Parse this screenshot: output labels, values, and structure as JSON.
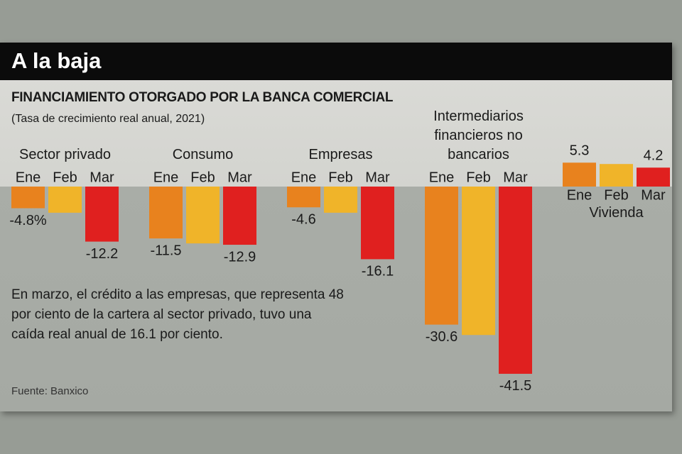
{
  "header": {
    "title": "A la baja",
    "subtitle": "FINANCIAMIENTO OTORGADO POR LA BANCA COMERCIAL",
    "unit_note": "(Tasa de crecimiento real anual, 2021)"
  },
  "note": "En marzo, el crédito a las empresas, que representa 48 por ciento de la cartera al sector privado, tuvo una caída real anual de 16.1 por ciento.",
  "source": "Fuente: Banxico",
  "chart_data": [
    {
      "type": "bar",
      "title": "Sector privado",
      "categories": [
        "Ene",
        "Feb",
        "Mar"
      ],
      "values": [
        -4.8,
        -5.8,
        -12.2
      ],
      "value_labels": [
        "-4.8%",
        null,
        "-12.2"
      ],
      "colors": [
        "#e8821e",
        "#f0b429",
        "#e0201f"
      ],
      "ylim": [
        -45,
        10
      ]
    },
    {
      "type": "bar",
      "title": "Consumo",
      "categories": [
        "Ene",
        "Feb",
        "Mar"
      ],
      "values": [
        -11.5,
        -12.6,
        -12.9
      ],
      "value_labels": [
        "-11.5",
        null,
        "-12.9"
      ],
      "colors": [
        "#e8821e",
        "#f0b429",
        "#e0201f"
      ],
      "ylim": [
        -45,
        10
      ]
    },
    {
      "type": "bar",
      "title": "Empresas",
      "categories": [
        "Ene",
        "Feb",
        "Mar"
      ],
      "values": [
        -4.6,
        -5.8,
        -16.1
      ],
      "value_labels": [
        "-4.6",
        null,
        "-16.1"
      ],
      "colors": [
        "#e8821e",
        "#f0b429",
        "#e0201f"
      ],
      "ylim": [
        -45,
        10
      ]
    },
    {
      "type": "bar",
      "title": "Intermediarios financieros no bancarios",
      "categories": [
        "Ene",
        "Feb",
        "Mar"
      ],
      "values": [
        -30.6,
        -32.9,
        -41.5
      ],
      "value_labels": [
        "-30.6",
        null,
        "-41.5"
      ],
      "colors": [
        "#e8821e",
        "#f0b429",
        "#e0201f"
      ],
      "ylim": [
        -45,
        10
      ]
    },
    {
      "type": "bar",
      "title": "Vivienda",
      "categories": [
        "Ene",
        "Feb",
        "Mar"
      ],
      "values": [
        5.3,
        5.0,
        4.2
      ],
      "value_labels": [
        "5.3",
        null,
        "4.2"
      ],
      "colors": [
        "#e8821e",
        "#f0b429",
        "#e0201f"
      ],
      "ylim": [
        -45,
        10
      ]
    }
  ]
}
